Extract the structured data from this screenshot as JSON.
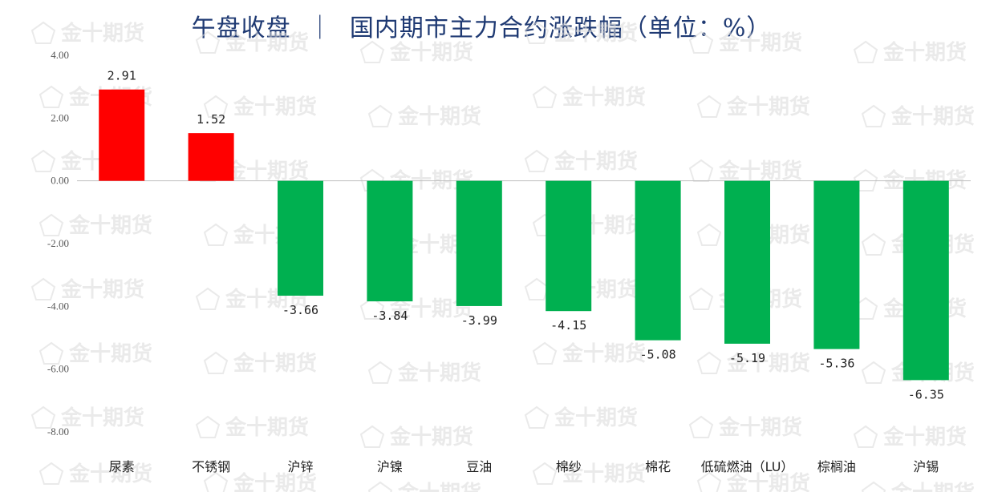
{
  "chart_data": {
    "type": "bar",
    "title": "午盘收盘  ｜  国内期市主力合约涨跌幅（单位：%）",
    "categories": [
      "尿素",
      "不锈钢",
      "沪锌",
      "沪镍",
      "豆油",
      "棉纱",
      "棉花",
      "低硫燃油（LU）",
      "棕榈油",
      "沪锡"
    ],
    "values": [
      2.91,
      1.52,
      -3.66,
      -3.84,
      -3.99,
      -4.15,
      -5.08,
      -5.19,
      -5.36,
      -6.35
    ],
    "data_labels": [
      "2.91",
      "1.52",
      "-3.66",
      "-3.84",
      "-3.99",
      "-4.15",
      "-5.08",
      "-5.19",
      "-5.36",
      "-6.35"
    ],
    "ylim": [
      -8,
      4
    ],
    "yticks": [
      "4.00",
      "2.00",
      "0.00",
      "-2.00",
      "-4.00",
      "-6.00",
      "-8.00"
    ],
    "ytick_values": [
      4,
      2,
      0,
      -2,
      -4,
      -6,
      -8
    ],
    "xlabel": "",
    "ylabel": "",
    "grid": false,
    "legend": "none",
    "colors": {
      "positive": "#ff0000",
      "negative": "#00b050",
      "axis": "#bfbfbf",
      "title": "#1f3a73"
    }
  },
  "watermark": {
    "text": "金十期货",
    "icon": "pentagon-logo-icon"
  }
}
